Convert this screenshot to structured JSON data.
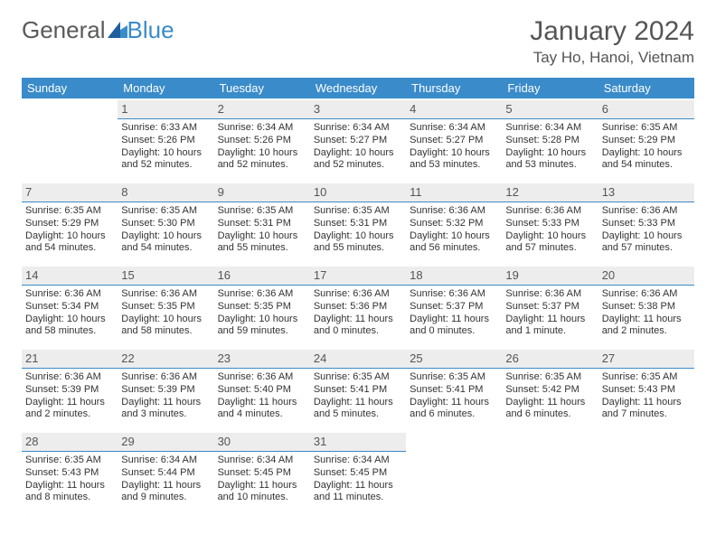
{
  "brand": {
    "general": "General",
    "blue": "Blue"
  },
  "title": "January 2024",
  "location": "Tay Ho, Hanoi, Vietnam",
  "colors": {
    "header_bg": "#3a8bc9",
    "header_fg": "#ffffff",
    "dayrow_bg": "#ededed",
    "dayrow_border": "#3a8bc9",
    "text": "#333333",
    "title": "#555555"
  },
  "weekdays": [
    "Sunday",
    "Monday",
    "Tuesday",
    "Wednesday",
    "Thursday",
    "Friday",
    "Saturday"
  ],
  "weeks": [
    [
      null,
      {
        "n": "1",
        "sr": "Sunrise: 6:33 AM",
        "ss": "Sunset: 5:26 PM",
        "dl": "Daylight: 10 hours and 52 minutes."
      },
      {
        "n": "2",
        "sr": "Sunrise: 6:34 AM",
        "ss": "Sunset: 5:26 PM",
        "dl": "Daylight: 10 hours and 52 minutes."
      },
      {
        "n": "3",
        "sr": "Sunrise: 6:34 AM",
        "ss": "Sunset: 5:27 PM",
        "dl": "Daylight: 10 hours and 52 minutes."
      },
      {
        "n": "4",
        "sr": "Sunrise: 6:34 AM",
        "ss": "Sunset: 5:27 PM",
        "dl": "Daylight: 10 hours and 53 minutes."
      },
      {
        "n": "5",
        "sr": "Sunrise: 6:34 AM",
        "ss": "Sunset: 5:28 PM",
        "dl": "Daylight: 10 hours and 53 minutes."
      },
      {
        "n": "6",
        "sr": "Sunrise: 6:35 AM",
        "ss": "Sunset: 5:29 PM",
        "dl": "Daylight: 10 hours and 54 minutes."
      }
    ],
    [
      {
        "n": "7",
        "sr": "Sunrise: 6:35 AM",
        "ss": "Sunset: 5:29 PM",
        "dl": "Daylight: 10 hours and 54 minutes."
      },
      {
        "n": "8",
        "sr": "Sunrise: 6:35 AM",
        "ss": "Sunset: 5:30 PM",
        "dl": "Daylight: 10 hours and 54 minutes."
      },
      {
        "n": "9",
        "sr": "Sunrise: 6:35 AM",
        "ss": "Sunset: 5:31 PM",
        "dl": "Daylight: 10 hours and 55 minutes."
      },
      {
        "n": "10",
        "sr": "Sunrise: 6:35 AM",
        "ss": "Sunset: 5:31 PM",
        "dl": "Daylight: 10 hours and 55 minutes."
      },
      {
        "n": "11",
        "sr": "Sunrise: 6:36 AM",
        "ss": "Sunset: 5:32 PM",
        "dl": "Daylight: 10 hours and 56 minutes."
      },
      {
        "n": "12",
        "sr": "Sunrise: 6:36 AM",
        "ss": "Sunset: 5:33 PM",
        "dl": "Daylight: 10 hours and 57 minutes."
      },
      {
        "n": "13",
        "sr": "Sunrise: 6:36 AM",
        "ss": "Sunset: 5:33 PM",
        "dl": "Daylight: 10 hours and 57 minutes."
      }
    ],
    [
      {
        "n": "14",
        "sr": "Sunrise: 6:36 AM",
        "ss": "Sunset: 5:34 PM",
        "dl": "Daylight: 10 hours and 58 minutes."
      },
      {
        "n": "15",
        "sr": "Sunrise: 6:36 AM",
        "ss": "Sunset: 5:35 PM",
        "dl": "Daylight: 10 hours and 58 minutes."
      },
      {
        "n": "16",
        "sr": "Sunrise: 6:36 AM",
        "ss": "Sunset: 5:35 PM",
        "dl": "Daylight: 10 hours and 59 minutes."
      },
      {
        "n": "17",
        "sr": "Sunrise: 6:36 AM",
        "ss": "Sunset: 5:36 PM",
        "dl": "Daylight: 11 hours and 0 minutes."
      },
      {
        "n": "18",
        "sr": "Sunrise: 6:36 AM",
        "ss": "Sunset: 5:37 PM",
        "dl": "Daylight: 11 hours and 0 minutes."
      },
      {
        "n": "19",
        "sr": "Sunrise: 6:36 AM",
        "ss": "Sunset: 5:37 PM",
        "dl": "Daylight: 11 hours and 1 minute."
      },
      {
        "n": "20",
        "sr": "Sunrise: 6:36 AM",
        "ss": "Sunset: 5:38 PM",
        "dl": "Daylight: 11 hours and 2 minutes."
      }
    ],
    [
      {
        "n": "21",
        "sr": "Sunrise: 6:36 AM",
        "ss": "Sunset: 5:39 PM",
        "dl": "Daylight: 11 hours and 2 minutes."
      },
      {
        "n": "22",
        "sr": "Sunrise: 6:36 AM",
        "ss": "Sunset: 5:39 PM",
        "dl": "Daylight: 11 hours and 3 minutes."
      },
      {
        "n": "23",
        "sr": "Sunrise: 6:36 AM",
        "ss": "Sunset: 5:40 PM",
        "dl": "Daylight: 11 hours and 4 minutes."
      },
      {
        "n": "24",
        "sr": "Sunrise: 6:35 AM",
        "ss": "Sunset: 5:41 PM",
        "dl": "Daylight: 11 hours and 5 minutes."
      },
      {
        "n": "25",
        "sr": "Sunrise: 6:35 AM",
        "ss": "Sunset: 5:41 PM",
        "dl": "Daylight: 11 hours and 6 minutes."
      },
      {
        "n": "26",
        "sr": "Sunrise: 6:35 AM",
        "ss": "Sunset: 5:42 PM",
        "dl": "Daylight: 11 hours and 6 minutes."
      },
      {
        "n": "27",
        "sr": "Sunrise: 6:35 AM",
        "ss": "Sunset: 5:43 PM",
        "dl": "Daylight: 11 hours and 7 minutes."
      }
    ],
    [
      {
        "n": "28",
        "sr": "Sunrise: 6:35 AM",
        "ss": "Sunset: 5:43 PM",
        "dl": "Daylight: 11 hours and 8 minutes."
      },
      {
        "n": "29",
        "sr": "Sunrise: 6:34 AM",
        "ss": "Sunset: 5:44 PM",
        "dl": "Daylight: 11 hours and 9 minutes."
      },
      {
        "n": "30",
        "sr": "Sunrise: 6:34 AM",
        "ss": "Sunset: 5:45 PM",
        "dl": "Daylight: 11 hours and 10 minutes."
      },
      {
        "n": "31",
        "sr": "Sunrise: 6:34 AM",
        "ss": "Sunset: 5:45 PM",
        "dl": "Daylight: 11 hours and 11 minutes."
      },
      null,
      null,
      null
    ]
  ]
}
